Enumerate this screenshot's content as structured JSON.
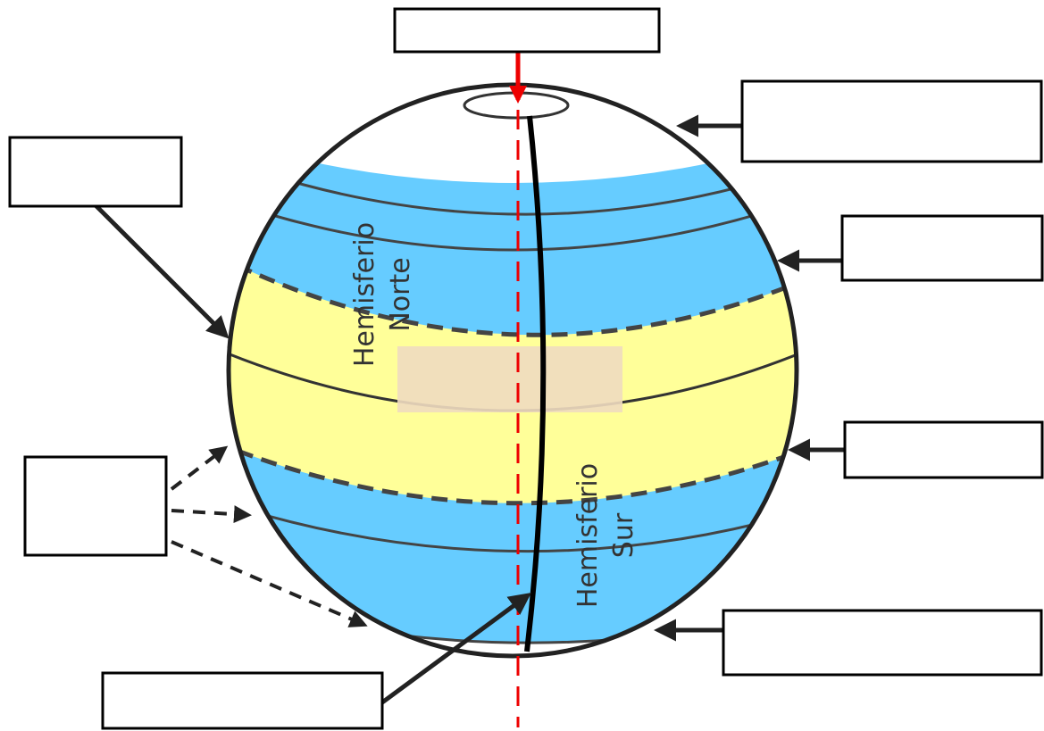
{
  "hemispheres": [
    {
      "lines": [
        "Hemisferio",
        "Norte"
      ]
    },
    {
      "lines": [
        "Hemisferio",
        "Sur"
      ]
    }
  ]
}
